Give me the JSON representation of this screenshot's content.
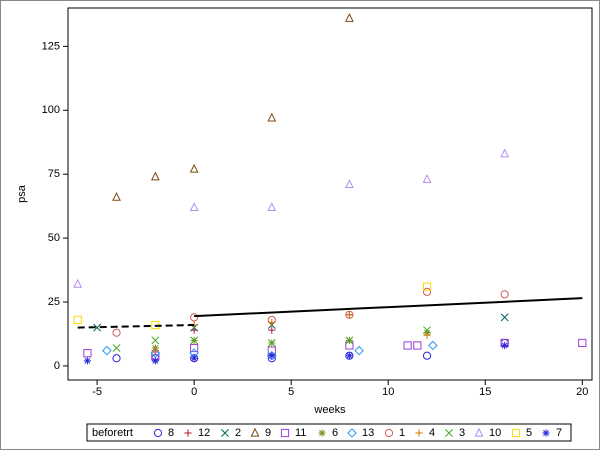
{
  "chart_data": {
    "type": "scatter",
    "x_label": "weeks",
    "y_label": "psa",
    "legend_title": "beforetrt",
    "xlim": [
      -6.5,
      20.5
    ],
    "ylim": [
      -5.5,
      140
    ],
    "xticks": [
      -5,
      0,
      5,
      10,
      15,
      20
    ],
    "yticks": [
      0,
      25,
      50,
      75,
      100,
      125
    ],
    "series": [
      {
        "name": "8",
        "color": "#2a25d9",
        "marker": "circle",
        "x": [
          -4,
          -2,
          0,
          4,
          8,
          12,
          16
        ],
        "values": [
          3,
          3,
          3,
          3,
          4,
          4,
          9
        ]
      },
      {
        "name": "12",
        "color": "#b2182b",
        "marker": "plus",
        "x": [
          -2,
          0,
          4,
          8
        ],
        "values": [
          6,
          14,
          14,
          20
        ]
      },
      {
        "name": "2",
        "color": "#01665e",
        "marker": "x",
        "x": [
          -5,
          0,
          4,
          16
        ],
        "values": [
          15,
          15,
          16,
          19
        ]
      },
      {
        "name": "9",
        "color": "#7b4a14",
        "marker": "triangle",
        "x": [
          -4,
          -2,
          0,
          4,
          8
        ],
        "values": [
          66,
          74,
          77,
          97,
          136
        ]
      },
      {
        "name": "11",
        "color": "#9d3cdb",
        "marker": "square",
        "x": [
          -5.5,
          -2,
          0,
          4,
          8,
          11,
          11.5,
          16,
          20
        ],
        "values": [
          5,
          4,
          7,
          6,
          8,
          8,
          8,
          9,
          9
        ]
      },
      {
        "name": "6",
        "color": "#7f8e1f",
        "marker": "asterisk",
        "x": [
          -2,
          0,
          4,
          8,
          12
        ],
        "values": [
          7,
          10,
          9,
          10,
          13
        ]
      },
      {
        "name": "13",
        "color": "#2597fa",
        "marker": "diamond",
        "x": [
          -4.5,
          -2,
          0,
          4,
          8.5,
          12.3
        ],
        "values": [
          6,
          5,
          5,
          4,
          6,
          8
        ]
      },
      {
        "name": "1",
        "color": "#d05b5b",
        "marker": "circle",
        "x": [
          -4,
          0,
          4,
          8,
          12,
          16
        ],
        "values": [
          13,
          19,
          18,
          20,
          29,
          28
        ]
      },
      {
        "name": "4",
        "color": "#d17800",
        "marker": "plus",
        "x": [
          -2,
          0,
          4,
          8,
          12
        ],
        "values": [
          6,
          16,
          17,
          20,
          12
        ]
      },
      {
        "name": "3",
        "color": "#47a82a",
        "marker": "x",
        "x": [
          -4,
          -2,
          0,
          4,
          8,
          12
        ],
        "values": [
          7,
          10,
          10,
          9,
          10,
          14
        ]
      },
      {
        "name": "10",
        "color": "#b38ef3",
        "marker": "triangle",
        "x": [
          -6,
          0,
          4,
          8,
          12,
          16
        ],
        "values": [
          32,
          62,
          62,
          71,
          73,
          83
        ]
      },
      {
        "name": "5",
        "color": "#f9da04",
        "marker": "square",
        "x": [
          -6,
          -2,
          12
        ],
        "values": [
          18,
          16,
          31
        ]
      },
      {
        "name": "7",
        "color": "#2a25d9",
        "marker": "asterisk",
        "x": [
          -5.5,
          -2,
          0,
          4,
          8,
          16
        ],
        "values": [
          2,
          2,
          3,
          4,
          4,
          8
        ]
      }
    ],
    "fit_lines": [
      {
        "style": "dashed",
        "x": [
          -6,
          0
        ],
        "values": [
          15,
          16
        ]
      },
      {
        "style": "solid",
        "x": [
          0,
          20
        ],
        "values": [
          19.5,
          26.5
        ]
      }
    ]
  }
}
